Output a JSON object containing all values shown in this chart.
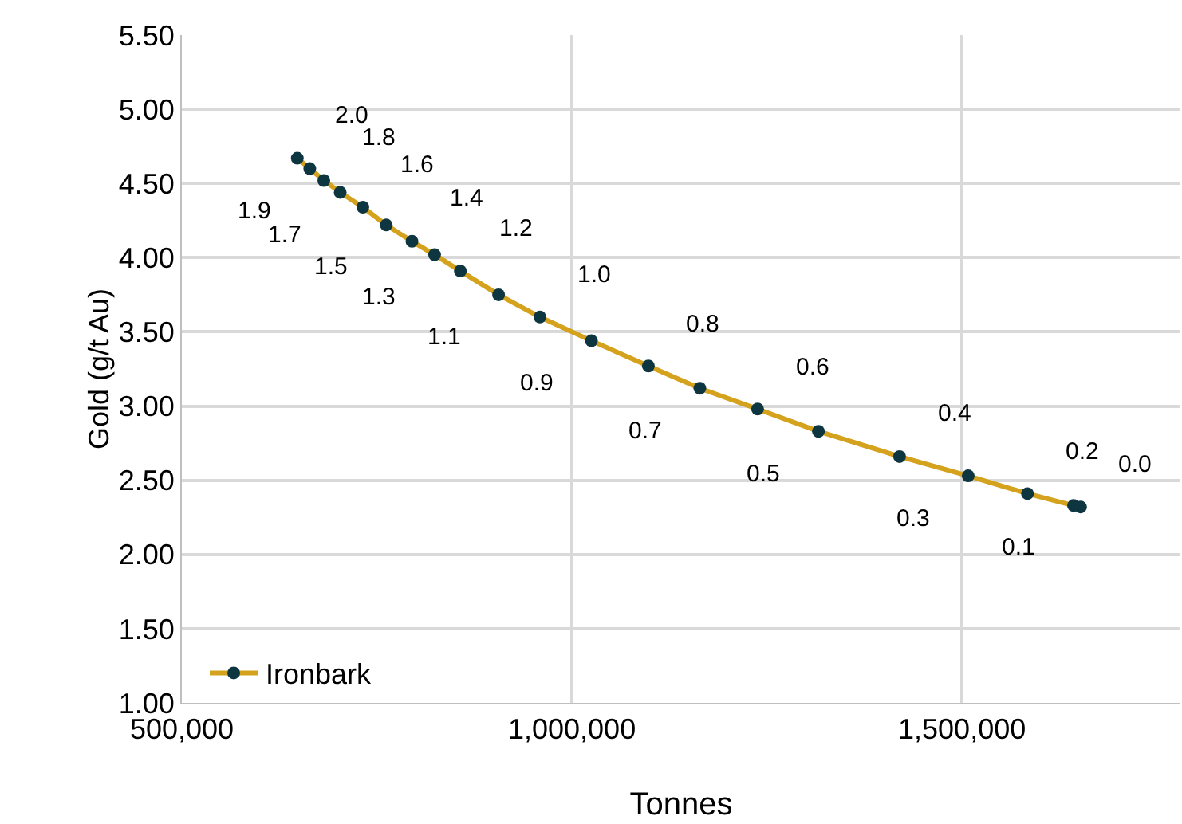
{
  "chart_data": {
    "type": "line",
    "xlabel": "Tonnes",
    "ylabel": "Gold (g/t Au)",
    "xlim": [
      500000,
      1780000
    ],
    "xticks": [
      {
        "value": 500000,
        "label": "500,000"
      },
      {
        "value": 1000000,
        "label": "1,000,000"
      },
      {
        "value": 1500000,
        "label": "1,500,000"
      }
    ],
    "ylim": [
      1,
      5.5
    ],
    "yticks": [
      {
        "value": 1,
        "label": "1.00"
      },
      {
        "value": 1.5,
        "label": "1.50"
      },
      {
        "value": 2,
        "label": "2.00"
      },
      {
        "value": 2.5,
        "label": "2.50"
      },
      {
        "value": 3,
        "label": "3.00"
      },
      {
        "value": 3.5,
        "label": "3.50"
      },
      {
        "value": 4,
        "label": "4.00"
      },
      {
        "value": 4.5,
        "label": "4.50"
      },
      {
        "value": 5,
        "label": "5.00"
      },
      {
        "value": 5.5,
        "label": "5.50"
      }
    ],
    "series": [
      {
        "name": "Ironbark",
        "color": "#d4a21c",
        "x": [
          648000,
          664000,
          682000,
          703000,
          732000,
          762000,
          795000,
          824000,
          857000,
          906000,
          959000,
          1025000,
          1098000,
          1164000,
          1238000,
          1316000,
          1420000,
          1508000,
          1584000,
          1643000,
          1652000
        ],
        "values": [
          4.67,
          4.6,
          4.52,
          4.44,
          4.34,
          4.22,
          4.11,
          4.02,
          3.91,
          3.75,
          3.6,
          3.44,
          3.27,
          3.12,
          2.98,
          2.83,
          2.66,
          2.53,
          2.41,
          2.33,
          2.32
        ]
      }
    ],
    "annotations": [
      {
        "text": "2.0",
        "x": 648000,
        "y": 4.67
      },
      {
        "text": "1.9",
        "x": 664000,
        "y": 4.6
      },
      {
        "text": "1.8",
        "x": 682000,
        "y": 4.52
      },
      {
        "text": "1.7",
        "x": 703000,
        "y": 4.44
      },
      {
        "text": "1.6",
        "x": 732000,
        "y": 4.34
      },
      {
        "text": "1.5",
        "x": 762000,
        "y": 4.22
      },
      {
        "text": "1.4",
        "x": 795000,
        "y": 4.11
      },
      {
        "text": "1.3",
        "x": 824000,
        "y": 4.02
      },
      {
        "text": "1.2",
        "x": 857000,
        "y": 3.91
      },
      {
        "text": "1.1",
        "x": 906000,
        "y": 3.75
      },
      {
        "text": "1.0",
        "x": 959000,
        "y": 3.6
      },
      {
        "text": "0.9",
        "x": 1025000,
        "y": 3.44
      },
      {
        "text": "0.8",
        "x": 1098000,
        "y": 3.27
      },
      {
        "text": "0.7",
        "x": 1164000,
        "y": 3.12
      },
      {
        "text": "0.6",
        "x": 1238000,
        "y": 2.98
      },
      {
        "text": "0.5",
        "x": 1316000,
        "y": 2.83
      },
      {
        "text": "0.4",
        "x": 1420000,
        "y": 2.66
      },
      {
        "text": "0.3",
        "x": 1508000,
        "y": 2.53
      },
      {
        "text": "0.2",
        "x": 1584000,
        "y": 2.41
      },
      {
        "text": "0.1",
        "x": 1643000,
        "y": 2.33
      },
      {
        "text": "0.0",
        "x": 1652000,
        "y": 2.32
      }
    ],
    "marker": "circle",
    "grid": true,
    "legend": "bottom left"
  }
}
